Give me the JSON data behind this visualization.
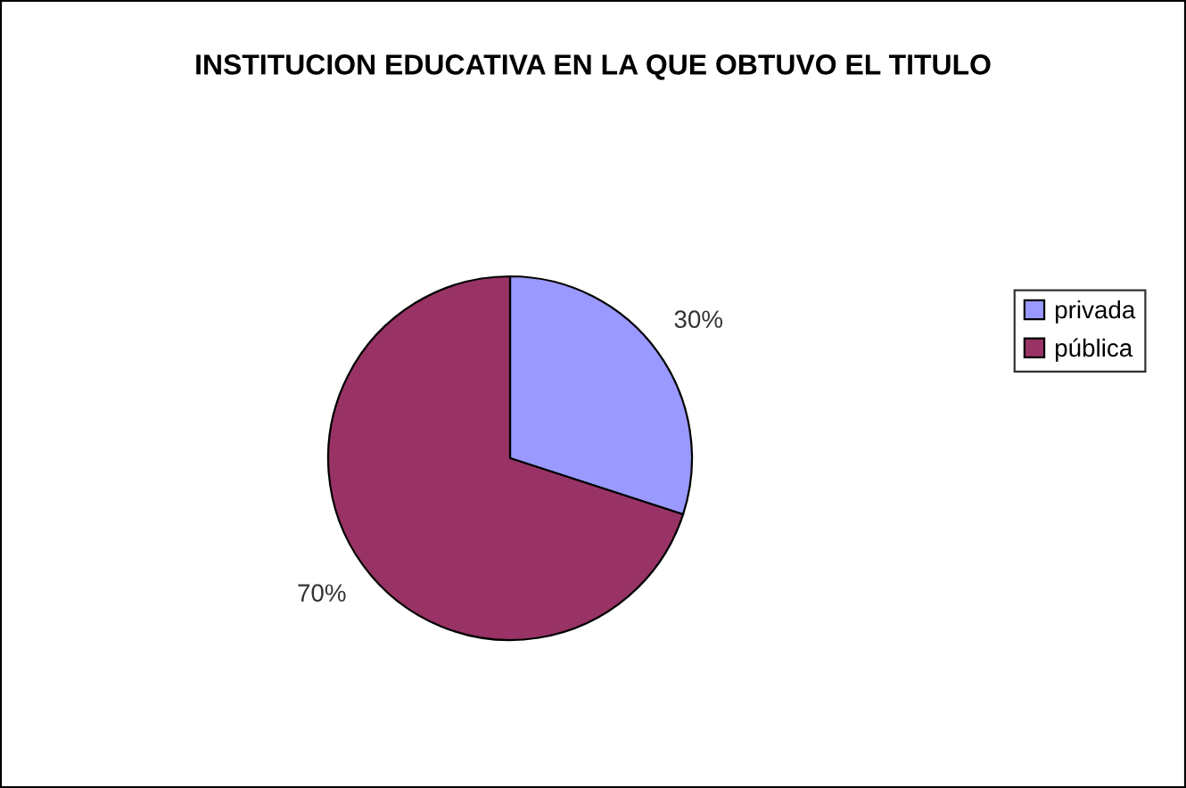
{
  "chart_data": {
    "type": "pie",
    "title": "INSTITUCION EDUCATIVA EN LA QUE OBTUVO EL TITULO",
    "categories": [
      "privada",
      "pública"
    ],
    "values": [
      30,
      70
    ],
    "colors": [
      "#9999ff",
      "#993366"
    ],
    "value_labels": [
      "30%",
      "70%"
    ],
    "legend": "right"
  }
}
